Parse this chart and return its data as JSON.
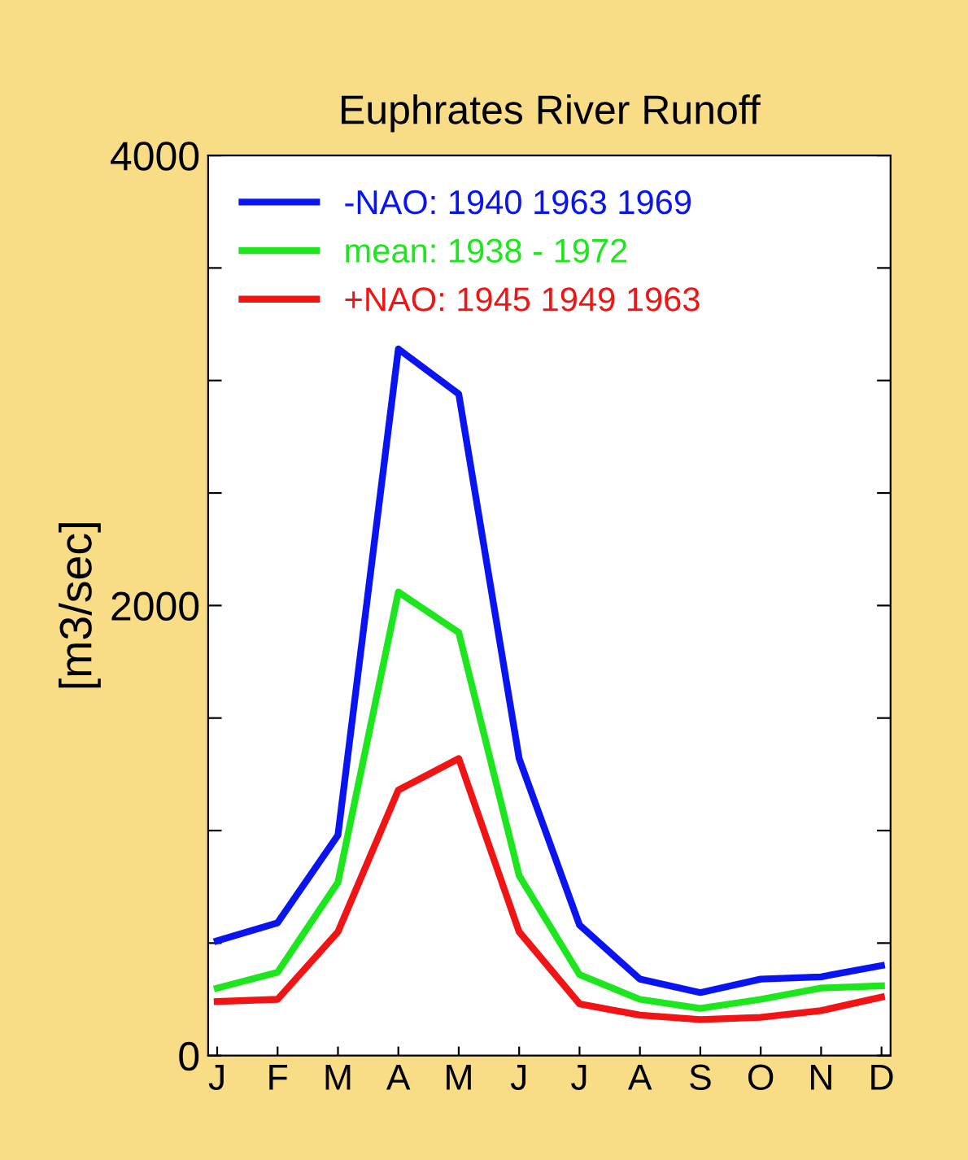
{
  "chart_data": {
    "type": "line",
    "title": "Euphrates River Runoff",
    "ylabel": "[m3/sec]",
    "categories": [
      "J",
      "F",
      "M",
      "A",
      "M",
      "J",
      "J",
      "A",
      "S",
      "O",
      "N",
      "D"
    ],
    "series": [
      {
        "name": "-NAO: 1940 1963 1969",
        "color": "#0a14f0",
        "values": [
          510,
          590,
          980,
          3140,
          2940,
          1320,
          580,
          340,
          280,
          340,
          350,
          400
        ]
      },
      {
        "name": "mean: 1938 - 1972",
        "color": "#1ee61e",
        "values": [
          300,
          370,
          770,
          2060,
          1880,
          800,
          360,
          250,
          210,
          250,
          300,
          310
        ]
      },
      {
        "name": "+NAO: 1945 1949 1963",
        "color": "#f01414",
        "values": [
          240,
          250,
          550,
          1180,
          1320,
          550,
          230,
          180,
          160,
          170,
          200,
          260
        ]
      }
    ],
    "ylim": [
      0,
      4000
    ],
    "yticks": [
      0,
      {
        "value": 500,
        "label": null
      },
      {
        "value": 1000,
        "label": null
      },
      {
        "value": 1500,
        "label": null
      },
      2000,
      {
        "value": 2500,
        "label": null
      },
      {
        "value": 3000,
        "label": null
      },
      {
        "value": 3500,
        "label": null
      },
      4000
    ],
    "grid": false,
    "legend": "top left",
    "marker": "none",
    "line_style": "solid"
  }
}
